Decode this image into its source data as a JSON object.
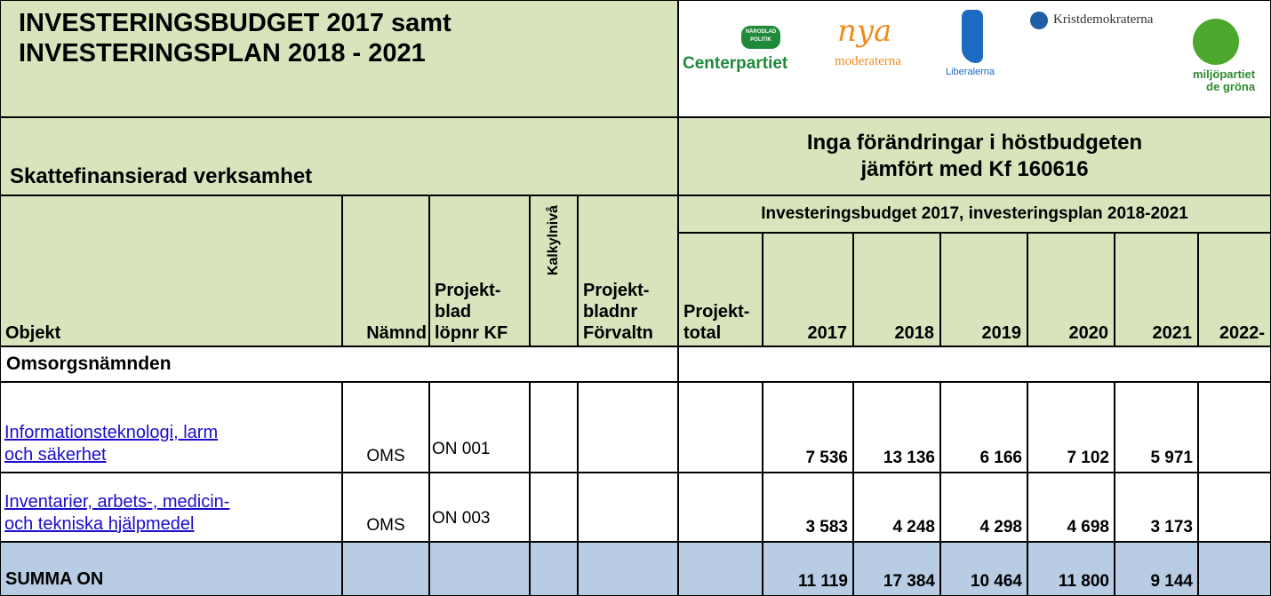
{
  "header": {
    "title": [
      "INVESTERINGSBUDGET 2017 samt",
      "INVESTERINGSPLAN 2018 - 2021"
    ],
    "logos": {
      "centerpartiet_badge": [
        "NÄRODLAD",
        "POLITIK"
      ],
      "centerpartiet": "Centerpartiet",
      "nya": "nya",
      "moderaterna": "moderaterna",
      "liberalerna": "Liberalerna",
      "kristdemokraterna": "Kristdemokraterna",
      "miljopartiet": [
        "miljöpartiet",
        "de gröna"
      ]
    }
  },
  "section": "Skattefinansierad verksamhet",
  "note": [
    "Inga förändringar i höstbudgeten",
    "jämfört med Kf 160616"
  ],
  "table": {
    "group_header": "Investeringsbudget 2017, investeringsplan 2018-2021",
    "columns": [
      [
        "Objekt"
      ],
      [
        "Nämnd"
      ],
      [
        "Projekt-",
        "blad",
        "löpnr KF"
      ],
      [
        "Kalkylnivå"
      ],
      [
        "Projekt-",
        "bladnr",
        "Förvaltn"
      ],
      [
        "Projekt-",
        "total"
      ],
      [
        "2017"
      ],
      [
        "2018"
      ],
      [
        "2019"
      ],
      [
        "2020"
      ],
      [
        "2021"
      ],
      [
        "2022-"
      ]
    ],
    "group": "Omsorgsnämnden",
    "rows": [
      {
        "objekt": [
          "Informationsteknologi, larm ",
          "och säkerhet"
        ],
        "namnd": "OMS",
        "kf": "ON 001",
        "values": [
          "7 536",
          "13 136",
          "6 166",
          "7 102",
          "5 971"
        ]
      },
      {
        "objekt": [
          "Inventarier, arbets-, medicin-",
          "och tekniska hjälpmedel"
        ],
        "namnd": "OMS",
        "kf": "ON 003",
        "values": [
          "3 583",
          "4 248",
          "4 298",
          "4 698",
          "3 173"
        ]
      }
    ],
    "total": {
      "label": "SUMMA ON",
      "values": [
        "11 119",
        "17 384",
        "10 464",
        "11 800",
        "9 144"
      ]
    }
  }
}
